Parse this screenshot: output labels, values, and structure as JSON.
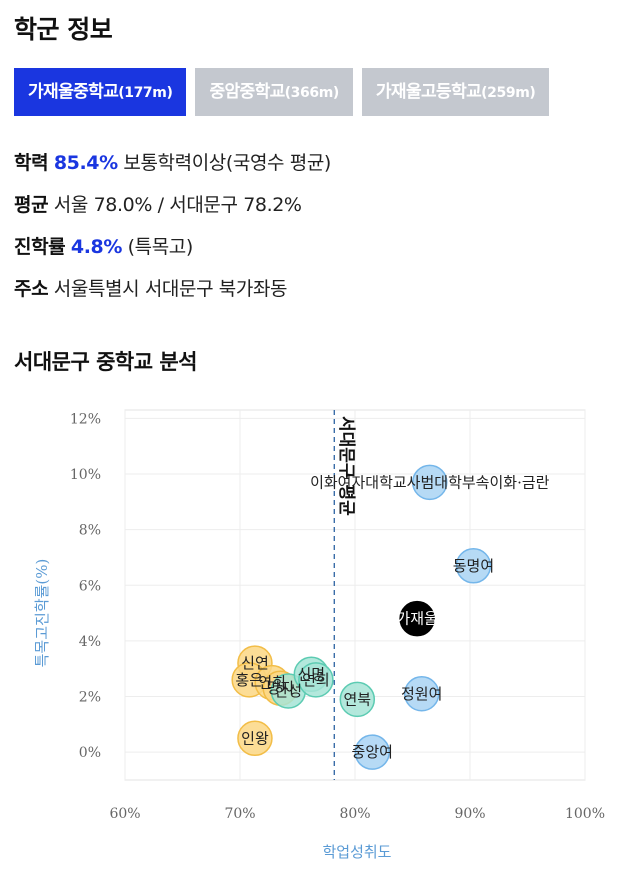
{
  "header": {
    "title": "학군 정보"
  },
  "tabs": [
    {
      "name": "가재울중학교",
      "distance": "(177m)",
      "active": true
    },
    {
      "name": "중암중학교",
      "distance": "(366m)",
      "active": false
    },
    {
      "name": "가재울고등학교",
      "distance": "(259m)",
      "active": false
    }
  ],
  "info": {
    "academic": {
      "label": "학력",
      "value": "85.4%",
      "desc": " 보통학력이상(국영수 평균)"
    },
    "average": {
      "label": "평균",
      "text": " 서울 78.0% / 서대문구 78.2%"
    },
    "advancement": {
      "label": "진학률",
      "value": "4.8%",
      "desc": " (특목고)"
    },
    "address": {
      "label": "주소",
      "text": " 서울특별시 서대문구 북가좌동"
    }
  },
  "section": {
    "title": "서대문구 중학교 분석"
  },
  "colors": {
    "accent": "#1a36e0",
    "tab_inactive": "#c4c8cf",
    "axis_title": "#5b9bd5",
    "blue_bubble": "#a9d3f3",
    "blue_edge": "#74b6ea",
    "yellow_bubble": "#fbd784",
    "yellow_edge": "#f2bd47",
    "teal_bubble": "#a6e4d6",
    "teal_edge": "#5ccbb2",
    "highlight_bubble": "#000000"
  },
  "chart_data": {
    "type": "scatter",
    "xlabel": "학업성취도",
    "ylabel": "특목고진학률(%)",
    "xlim": [
      60,
      100
    ],
    "ylim": [
      -1,
      12.3
    ],
    "x_ticks": [
      60,
      70,
      80,
      90,
      100
    ],
    "y_ticks": [
      0,
      2,
      4,
      6,
      8,
      10,
      12
    ],
    "tick_suffix": "%",
    "grid": true,
    "average_line": {
      "x": 78.2,
      "label": "서대문구 평균"
    },
    "points": [
      {
        "label": "이화여자대학교사범대학부속이화·금란",
        "x": 86.5,
        "y": 9.7,
        "group": "blue"
      },
      {
        "label": "동명여",
        "x": 90.3,
        "y": 6.7,
        "group": "blue"
      },
      {
        "label": "가재울",
        "x": 85.4,
        "y": 4.8,
        "group": "highlight"
      },
      {
        "label": "정원여",
        "x": 85.8,
        "y": 2.1,
        "group": "blue"
      },
      {
        "label": "중앙여",
        "x": 81.5,
        "y": 0.0,
        "group": "blue"
      },
      {
        "label": "연북",
        "x": 80.2,
        "y": 1.9,
        "group": "teal"
      },
      {
        "label": "신연",
        "x": 71.3,
        "y": 3.2,
        "group": "yellow"
      },
      {
        "label": "홍은",
        "x": 70.8,
        "y": 2.6,
        "group": "yellow"
      },
      {
        "label": "연희",
        "x": 72.8,
        "y": 2.5,
        "group": "yellow"
      },
      {
        "label": "명지",
        "x": 73.5,
        "y": 2.3,
        "group": "yellow"
      },
      {
        "label": "한성",
        "x": 74.2,
        "y": 2.2,
        "group": "teal"
      },
      {
        "label": "신명",
        "x": 76.2,
        "y": 2.8,
        "group": "teal"
      },
      {
        "label": "연희",
        "x": 76.6,
        "y": 2.6,
        "group": "teal"
      },
      {
        "label": "인왕",
        "x": 71.3,
        "y": 0.5,
        "group": "yellow"
      }
    ]
  }
}
